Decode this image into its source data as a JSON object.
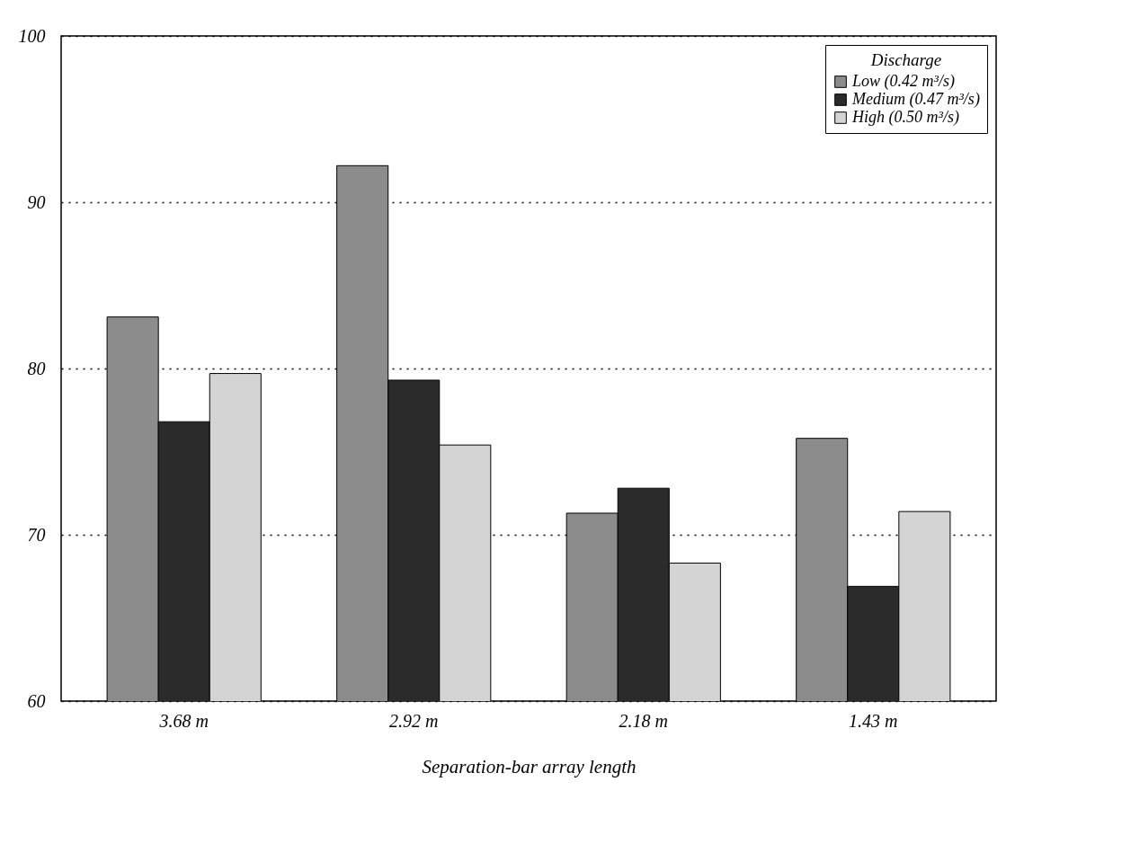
{
  "chart_data": {
    "type": "bar",
    "xlabel": "Separation-bar array length",
    "legend_title": "Discharge",
    "categories": [
      "3.68 m",
      "2.92 m",
      "2.18 m",
      "1.43 m"
    ],
    "series": [
      {
        "name": "Low (0.42 m³/s)",
        "color": "#8c8c8c",
        "values": [
          83.1,
          92.2,
          71.3,
          75.8
        ]
      },
      {
        "name": "Medium (0.47 m³/s)",
        "color": "#2b2b2b",
        "values": [
          76.8,
          79.3,
          72.8,
          66.9
        ]
      },
      {
        "name": "High (0.50 m³/s)",
        "color": "#d4d4d4",
        "values": [
          79.7,
          75.4,
          68.3,
          71.4
        ]
      }
    ],
    "ylim": [
      60,
      100
    ],
    "yticks": [
      60,
      70,
      80,
      90,
      100
    ],
    "grid": "y",
    "legend": "top right"
  }
}
